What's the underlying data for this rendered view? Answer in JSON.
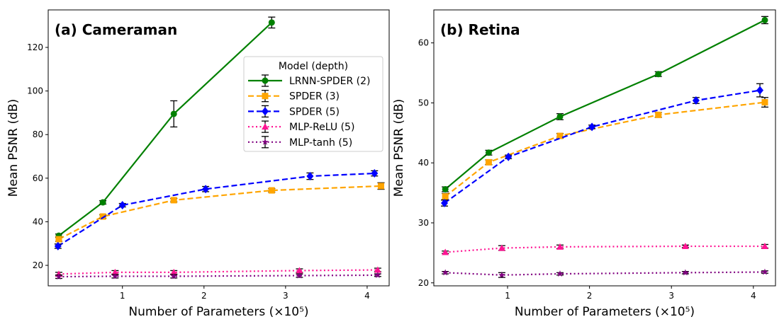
{
  "chart_data": [
    {
      "type": "line",
      "title": "(a) Cameraman",
      "xlabel": "Number of Parameters (×10⁵)",
      "ylabel": "Mean PSNR (dB)",
      "xlim": [
        0.09,
        4.27
      ],
      "ylim": [
        10.6,
        137.2
      ],
      "xticks": [
        1,
        2,
        3,
        4
      ],
      "yticks": [
        20,
        40,
        60,
        80,
        100,
        120
      ],
      "grid": false,
      "legend": {
        "title": "Model (depth)",
        "placement": "upper right"
      },
      "series": [
        {
          "name": "LRNN-SPDER (2)",
          "color": "#008000",
          "style": "solid",
          "marker": "circle",
          "x": [
            0.22,
            0.76,
            1.63,
            2.83
          ],
          "y": [
            33.6,
            48.9,
            89.5,
            131.4
          ],
          "yerr": [
            0.8,
            0.8,
            6.0,
            2.5
          ]
        },
        {
          "name": "SPDER (3)",
          "color": "#ffa500",
          "style": "dashed",
          "marker": "square",
          "x": [
            0.22,
            0.76,
            1.63,
            2.83,
            4.17
          ],
          "y": [
            32.0,
            42.4,
            49.9,
            54.4,
            56.4
          ],
          "yerr": [
            1.0,
            0.8,
            0.8,
            0.8,
            1.5
          ]
        },
        {
          "name": "SPDER (5)",
          "color": "#0000ff",
          "style": "dashed",
          "marker": "diamond",
          "x": [
            0.21,
            1.0,
            2.02,
            3.3,
            4.09
          ],
          "y": [
            28.8,
            47.6,
            55.0,
            60.9,
            62.2
          ],
          "yerr": [
            1.0,
            0.8,
            1.2,
            1.5,
            1.2
          ]
        },
        {
          "name": "MLP-ReLU (5)",
          "color": "#ff1493",
          "style": "dotted",
          "marker": "triangle",
          "x": [
            0.22,
            0.91,
            1.63,
            3.17,
            4.13
          ],
          "y": [
            16.0,
            16.8,
            16.8,
            17.6,
            17.9
          ],
          "yerr": [
            0.8,
            0.8,
            0.8,
            0.8,
            0.8
          ]
        },
        {
          "name": "MLP-tanh (5)",
          "color": "#800080",
          "style": "dotted",
          "marker": "star",
          "x": [
            0.22,
            0.91,
            1.63,
            3.17,
            4.13
          ],
          "y": [
            14.8,
            15.0,
            15.0,
            15.3,
            15.5
          ],
          "yerr": [
            0.8,
            0.8,
            0.8,
            0.8,
            0.6
          ]
        }
      ]
    },
    {
      "type": "line",
      "title": "(b) Retina",
      "xlabel": "Number of Parameters (×10⁵)",
      "ylabel": "Mean PSNR (dB)",
      "xlim": [
        0.1,
        4.27
      ],
      "ylim": [
        19.5,
        65.5
      ],
      "xticks": [
        1,
        2,
        3,
        4
      ],
      "yticks": [
        20,
        30,
        40,
        50,
        60
      ],
      "grid": false,
      "series": [
        {
          "name": "LRNN-SPDER (2)",
          "color": "#008000",
          "style": "solid",
          "marker": "circle",
          "x": [
            0.24,
            0.77,
            1.64,
            2.84,
            4.14
          ],
          "y": [
            35.6,
            41.7,
            47.7,
            54.8,
            63.8
          ],
          "yerr": [
            0.4,
            0.4,
            0.5,
            0.4,
            0.6
          ]
        },
        {
          "name": "SPDER (3)",
          "color": "#ffa500",
          "style": "dashed",
          "marker": "square",
          "x": [
            0.24,
            0.77,
            1.64,
            2.84,
            4.14
          ],
          "y": [
            34.4,
            40.1,
            44.5,
            48.0,
            50.1
          ],
          "yerr": [
            0.5,
            0.4,
            0.4,
            0.4,
            0.8
          ]
        },
        {
          "name": "SPDER (5)",
          "color": "#0000ff",
          "style": "dashed",
          "marker": "diamond",
          "x": [
            0.23,
            1.01,
            2.03,
            3.3,
            4.08
          ],
          "y": [
            33.3,
            41.0,
            46.0,
            50.4,
            52.1
          ],
          "yerr": [
            0.5,
            0.3,
            0.3,
            0.5,
            1.1
          ]
        },
        {
          "name": "MLP-ReLU (5)",
          "color": "#ff1493",
          "style": "dotted",
          "marker": "triangle",
          "x": [
            0.24,
            0.93,
            1.64,
            3.17,
            4.14
          ],
          "y": [
            25.1,
            25.8,
            26.0,
            26.1,
            26.1
          ],
          "yerr": [
            0.2,
            0.4,
            0.3,
            0.2,
            0.3
          ]
        },
        {
          "name": "MLP-tanh (5)",
          "color": "#800080",
          "style": "dotted",
          "marker": "star",
          "x": [
            0.24,
            0.93,
            1.64,
            3.17,
            4.14
          ],
          "y": [
            21.7,
            21.3,
            21.5,
            21.7,
            21.8
          ],
          "yerr": [
            0.2,
            0.4,
            0.2,
            0.2,
            0.2
          ]
        }
      ]
    }
  ]
}
